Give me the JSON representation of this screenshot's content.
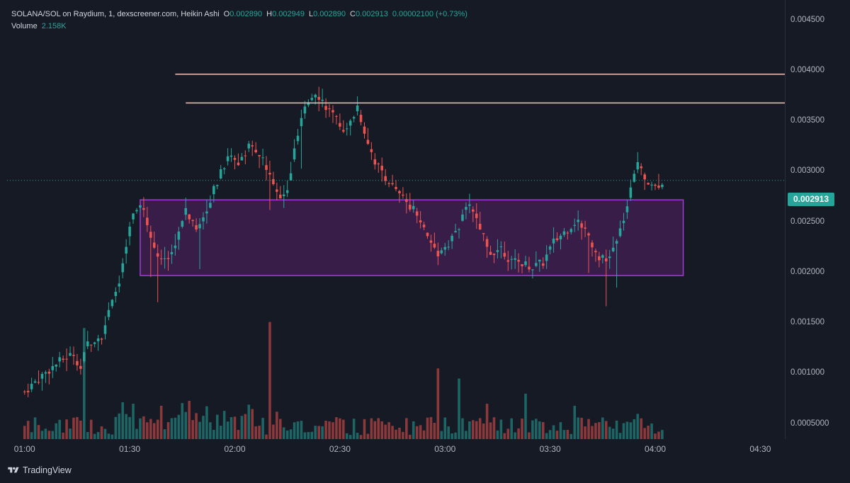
{
  "header": {
    "title": "SOLANA/SOL on Raydium, 1, dexscreener.com, Heikin Ashi",
    "ohlc": [
      {
        "key": "O",
        "value": "0.002890"
      },
      {
        "key": "H",
        "value": "0.002949"
      },
      {
        "key": "L",
        "value": "0.002890"
      },
      {
        "key": "C",
        "value": "0.002913"
      }
    ],
    "change": "0.00002100 (+0.73%)",
    "volume_label": "Volume",
    "volume_value": "2.158K"
  },
  "price_tag": "0.002913",
  "footer": {
    "brand": "TradingView"
  },
  "colors": {
    "background": "#161a25",
    "up": "#26a69a",
    "down": "#ef5350",
    "zone_fill": "#3e1f4f",
    "zone_border": "#a33bd6",
    "level_line": "#f4c4bb"
  },
  "chart_data": {
    "type": "candlestick",
    "style": "Heikin Ashi",
    "x_tick_labels": [
      "01:00",
      "01:30",
      "02:00",
      "02:30",
      "03:00",
      "03:30",
      "04:00",
      "04:30"
    ],
    "y_tick_labels": [
      "0.004500",
      "0.004000",
      "0.003500",
      "0.003000",
      "0.002500",
      "0.002000",
      "0.001500",
      "0.001000",
      "0.0005000"
    ],
    "ylim": [
      0.00035,
      0.0047
    ],
    "xlim_minutes": [
      -5,
      217
    ],
    "last_price": 0.002913,
    "horizontal_lines": [
      {
        "price": 0.003965,
        "from_min": 43,
        "to_min": 217
      },
      {
        "price": 0.00368,
        "from_min": 46,
        "to_min": 217
      }
    ],
    "zone": {
      "price_top": 0.00272,
      "price_bottom": 0.00197,
      "from_min": 33,
      "to_min": 188
    },
    "series": [
      {
        "name": "price_path",
        "points": [
          [
            0,
            0.00082
          ],
          [
            5,
            0.00098
          ],
          [
            10,
            0.00112
          ],
          [
            14,
            0.0012
          ],
          [
            16,
            0.00105
          ],
          [
            18,
            0.0013
          ],
          [
            22,
            0.00138
          ],
          [
            26,
            0.0018
          ],
          [
            28,
            0.00205
          ],
          [
            30,
            0.00245
          ],
          [
            32,
            0.00265
          ],
          [
            34,
            0.0026
          ],
          [
            37,
            0.00225
          ],
          [
            40,
            0.0021
          ],
          [
            43,
            0.0023
          ],
          [
            46,
            0.0026
          ],
          [
            49,
            0.00245
          ],
          [
            52,
            0.00265
          ],
          [
            55,
            0.0029
          ],
          [
            58,
            0.00315
          ],
          [
            61,
            0.0031
          ],
          [
            64,
            0.00325
          ],
          [
            67,
            0.00315
          ],
          [
            70,
            0.003
          ],
          [
            73,
            0.0027
          ],
          [
            75,
            0.0028
          ],
          [
            77,
            0.0032
          ],
          [
            79,
            0.0035
          ],
          [
            81,
            0.0037
          ],
          [
            83,
            0.0038
          ],
          [
            86,
            0.00365
          ],
          [
            89,
            0.0035
          ],
          [
            92,
            0.0034
          ],
          [
            95,
            0.00365
          ],
          [
            97,
            0.0034
          ],
          [
            100,
            0.0031
          ],
          [
            103,
            0.00295
          ],
          [
            106,
            0.0028
          ],
          [
            109,
            0.0027
          ],
          [
            112,
            0.0026
          ],
          [
            115,
            0.00235
          ],
          [
            118,
            0.0022
          ],
          [
            121,
            0.0023
          ],
          [
            124,
            0.00245
          ],
          [
            127,
            0.0027
          ],
          [
            130,
            0.00245
          ],
          [
            133,
            0.0022
          ],
          [
            136,
            0.00225
          ],
          [
            139,
            0.0021
          ],
          [
            142,
            0.0021
          ],
          [
            145,
            0.00205
          ],
          [
            148,
            0.0021
          ],
          [
            151,
            0.0023
          ],
          [
            154,
            0.0024
          ],
          [
            157,
            0.0025
          ],
          [
            160,
            0.00245
          ],
          [
            163,
            0.0022
          ],
          [
            166,
            0.0021
          ],
          [
            169,
            0.0023
          ],
          [
            172,
            0.00265
          ],
          [
            175,
            0.0031
          ],
          [
            177,
            0.00295
          ],
          [
            180,
            0.00285
          ],
          [
            182,
            0.00291
          ]
        ]
      },
      {
        "name": "volume",
        "base_value": 0.00039,
        "max_value": 0.00151,
        "spikes": [
          [
            17,
            0.00145
          ],
          [
            70,
            0.00151
          ],
          [
            118,
            0.00105
          ],
          [
            124,
            0.00095
          ],
          [
            132,
            0.0007
          ],
          [
            143,
            0.0008
          ],
          [
            157,
            0.00068
          ],
          [
            175,
            0.0006
          ]
        ]
      }
    ]
  }
}
